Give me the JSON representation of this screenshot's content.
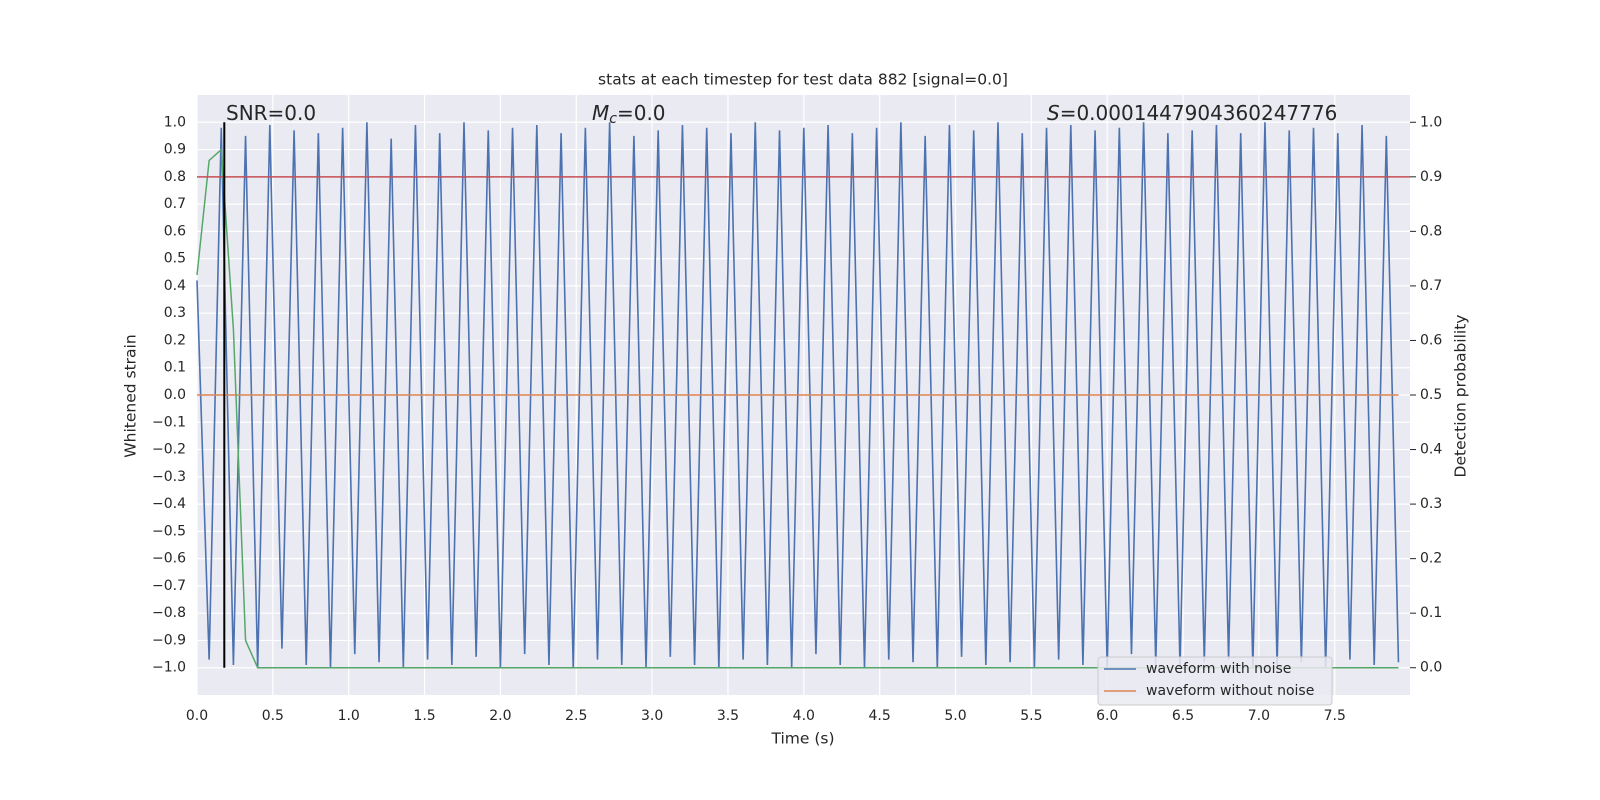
{
  "chart_data": {
    "type": "line",
    "title": "stats at each timestep for test data 882 [signal=0.0]",
    "xlabel": "Time (s)",
    "ylabel": "Whitened strain",
    "y2label": "Detection probability",
    "annotations": [
      {
        "text": "SNR=0.0"
      },
      {
        "symbol": "M",
        "sub": "c",
        "text": "=0.0"
      },
      {
        "symbol": "S",
        "text": "=0.0001447904360247776"
      }
    ],
    "x": [
      0,
      0.08,
      0.16,
      0.24,
      0.32,
      0.4,
      0.48,
      0.56,
      0.64,
      0.72,
      0.8,
      0.88,
      0.96,
      1.04,
      1.12,
      1.2,
      1.28,
      1.36,
      1.44,
      1.52,
      1.6,
      1.68,
      1.76,
      1.84,
      1.92,
      2,
      2.08,
      2.16,
      2.24,
      2.32,
      2.4,
      2.48,
      2.56,
      2.64,
      2.72,
      2.8,
      2.88,
      2.96,
      3.04,
      3.12,
      3.2,
      3.28,
      3.36,
      3.44,
      3.52,
      3.6,
      3.68,
      3.76,
      3.84,
      3.92,
      4,
      4.08,
      4.16,
      4.24,
      4.32,
      4.4,
      4.48,
      4.56,
      4.64,
      4.72,
      4.8,
      4.88,
      4.96,
      5.04,
      5.12,
      5.2,
      5.28,
      5.36,
      5.44,
      5.52,
      5.6,
      5.68,
      5.76,
      5.84,
      5.92,
      6,
      6.08,
      6.16,
      6.24,
      6.32,
      6.4,
      6.48,
      6.56,
      6.64,
      6.72,
      6.8,
      6.88,
      6.96,
      7.04,
      7.12,
      7.2,
      7.28,
      7.36,
      7.44,
      7.52,
      7.6,
      7.68,
      7.76,
      7.84,
      7.92
    ],
    "series": [
      {
        "name": "waveform with noise",
        "color": "#4c72b0",
        "values": [
          0.42,
          -0.97,
          0.98,
          -0.99,
          0.95,
          -1.0,
          0.99,
          -0.93,
          0.97,
          -0.99,
          0.96,
          -1.0,
          0.98,
          -0.95,
          1.0,
          -0.98,
          0.94,
          -1.0,
          0.99,
          -0.97,
          0.96,
          -0.99,
          1.0,
          -0.96,
          0.97,
          -1.0,
          0.98,
          -0.95,
          0.99,
          -0.99,
          0.96,
          -1.0,
          0.98,
          -0.97,
          1.0,
          -0.99,
          0.95,
          -1.0,
          0.97,
          -0.96,
          0.99,
          -0.99,
          0.98,
          -1.0,
          0.96,
          -0.97,
          1.0,
          -0.99,
          0.97,
          -1.0,
          0.98,
          -0.95,
          0.99,
          -0.99,
          0.96,
          -1.0,
          0.98,
          -0.97,
          1.0,
          -0.98,
          0.95,
          -1.0,
          0.99,
          -0.96,
          0.97,
          -0.99,
          1.0,
          -0.98,
          0.96,
          -1.0,
          0.98,
          -0.97,
          0.99,
          -0.99,
          0.97,
          -1.0,
          0.98,
          -0.95,
          1.0,
          -0.99,
          0.96,
          -1.0,
          0.97,
          -0.98,
          0.99,
          -0.97,
          0.96,
          -1.0,
          1.0,
          -0.99,
          0.97,
          -0.98,
          0.98,
          -1.0,
          0.96,
          -0.97,
          0.99,
          -0.99,
          0.95,
          -0.98
        ]
      },
      {
        "name": "waveform without noise",
        "color": "#dd8452",
        "values": [
          0,
          0,
          0,
          0,
          0,
          0,
          0,
          0,
          0,
          0,
          0,
          0,
          0,
          0,
          0,
          0,
          0,
          0,
          0,
          0,
          0,
          0,
          0,
          0,
          0,
          0,
          0,
          0,
          0,
          0,
          0,
          0,
          0,
          0,
          0,
          0,
          0,
          0,
          0,
          0,
          0,
          0,
          0,
          0,
          0,
          0,
          0,
          0,
          0,
          0,
          0,
          0,
          0,
          0,
          0,
          0,
          0,
          0,
          0,
          0,
          0,
          0,
          0,
          0,
          0,
          0,
          0,
          0,
          0,
          0,
          0,
          0,
          0,
          0,
          0,
          0,
          0,
          0,
          0,
          0,
          0,
          0,
          0,
          0,
          0,
          0,
          0,
          0,
          0,
          0,
          0,
          0,
          0,
          0,
          0,
          0,
          0,
          0,
          0,
          0
        ]
      },
      {
        "color": "#55a868",
        "axis": "y2",
        "values": [
          0.72,
          0.93,
          0.95,
          0.62,
          0.05,
          0,
          0,
          0,
          0,
          0,
          0,
          0,
          0,
          0,
          0,
          0,
          0,
          0,
          0,
          0,
          0,
          0,
          0,
          0,
          0,
          0,
          0,
          0,
          0,
          0,
          0,
          0,
          0,
          0,
          0,
          0,
          0,
          0,
          0,
          0,
          0,
          0,
          0,
          0,
          0,
          0,
          0,
          0,
          0,
          0,
          0,
          0,
          0,
          0,
          0,
          0,
          0,
          0,
          0,
          0,
          0,
          0,
          0,
          0,
          0,
          0,
          0,
          0,
          0,
          0,
          0,
          0,
          0,
          0,
          0,
          0,
          0,
          0,
          0,
          0,
          0,
          0,
          0,
          0,
          0,
          0,
          0,
          0,
          0,
          0,
          0,
          0,
          0,
          0,
          0,
          0,
          0,
          0,
          0,
          0
        ]
      }
    ],
    "threshold": {
      "value": 0.9,
      "color": "#c44e52",
      "axis": "y2"
    },
    "marker_x": {
      "value": 0.18,
      "color": "#000000"
    },
    "xlim": [
      0,
      7.996
    ],
    "ylim": [
      -1.1,
      1.1
    ],
    "y2lim": [
      -0.05,
      1.05
    ],
    "xticks": [
      {
        "value": 0,
        "label": "0.0"
      },
      0.5,
      {
        "value": 1,
        "label": "1.0"
      },
      1.5,
      {
        "value": 2,
        "label": "2.0"
      },
      2.5,
      {
        "value": 3,
        "label": "3.0"
      },
      3.5,
      {
        "value": 4,
        "label": "4.0"
      },
      4.5,
      {
        "value": 5,
        "label": "5.0"
      },
      5.5,
      {
        "value": 6,
        "label": "6.0"
      },
      6.5,
      {
        "value": 7,
        "label": "7.0"
      },
      7.5
    ],
    "yticks": [
      {
        "value": -1,
        "label": "−1.0"
      },
      {
        "value": -0.9,
        "label": "−0.9"
      },
      {
        "value": -0.8,
        "label": "−0.8"
      },
      {
        "value": -0.7,
        "label": "−0.7"
      },
      {
        "value": -0.6,
        "label": "−0.6"
      },
      {
        "value": -0.5,
        "label": "−0.5"
      },
      {
        "value": -0.4,
        "label": "−0.4"
      },
      {
        "value": -0.3,
        "label": "−0.3"
      },
      {
        "value": -0.2,
        "label": "−0.2"
      },
      {
        "value": -0.1,
        "label": "−0.1"
      },
      {
        "value": 0,
        "label": "0.0"
      },
      0.1,
      0.2,
      0.3,
      0.4,
      0.5,
      0.6,
      0.7,
      0.8,
      0.9,
      {
        "value": 1,
        "label": "1.0"
      }
    ],
    "y2ticks": [
      {
        "value": 0,
        "label": "0.0"
      },
      0.1,
      0.2,
      0.3,
      0.4,
      0.5,
      0.6,
      0.7,
      0.8,
      0.9,
      {
        "value": 1,
        "label": "1.0"
      }
    ],
    "grid": true,
    "legend": "lower right"
  }
}
